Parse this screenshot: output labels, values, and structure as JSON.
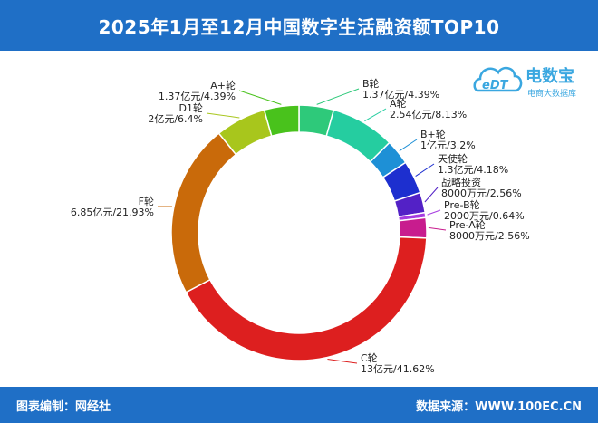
{
  "header": {
    "title": "2025年1月至12月中国数字生活融资额TOP10"
  },
  "footer": {
    "left": "图表编制：网经社",
    "right": "数据来源：WWW.100EC.CN"
  },
  "logo": {
    "brand": "电数宝",
    "mark": "eDT",
    "tagline": "电商大数据库"
  },
  "colors": {
    "header_bg": "#1f6fc6"
  },
  "chart_data": {
    "type": "pie",
    "donut": true,
    "slices": [
      {
        "name": "B轮",
        "value_text": "1.37亿元/4.39%",
        "value": 4.39,
        "color": "#2ec97a"
      },
      {
        "name": "A轮",
        "value_text": "2.54亿元/8.13%",
        "value": 8.13,
        "color": "#25cda0"
      },
      {
        "name": "B+轮",
        "value_text": "1亿元/3.2%",
        "value": 3.2,
        "color": "#1e90d6"
      },
      {
        "name": "天使轮",
        "value_text": "1.3亿元/4.18%",
        "value": 4.18,
        "color": "#1d2fcf"
      },
      {
        "name": "战略投资",
        "value_text": "8000万元/2.56%",
        "value": 2.56,
        "color": "#5321c6"
      },
      {
        "name": "Pre-B轮",
        "value_text": "2000万元/0.64%",
        "value": 0.64,
        "color": "#a63be0"
      },
      {
        "name": "Pre-A轮",
        "value_text": "8000万元/2.56%",
        "value": 2.56,
        "color": "#c81c8e"
      },
      {
        "name": "C轮",
        "value_text": "13亿元/41.62%",
        "value": 41.62,
        "color": "#dd1f1f"
      },
      {
        "name": "F轮",
        "value_text": "6.85亿元/21.93%",
        "value": 21.93,
        "color": "#c96a0a"
      },
      {
        "name": "D1轮",
        "value_text": "2亿元/6.4%",
        "value": 6.4,
        "color": "#a8c61c"
      },
      {
        "name": "A+轮",
        "value_text": "1.37亿元/4.39%",
        "value": 4.39,
        "color": "#49c21c"
      }
    ]
  }
}
